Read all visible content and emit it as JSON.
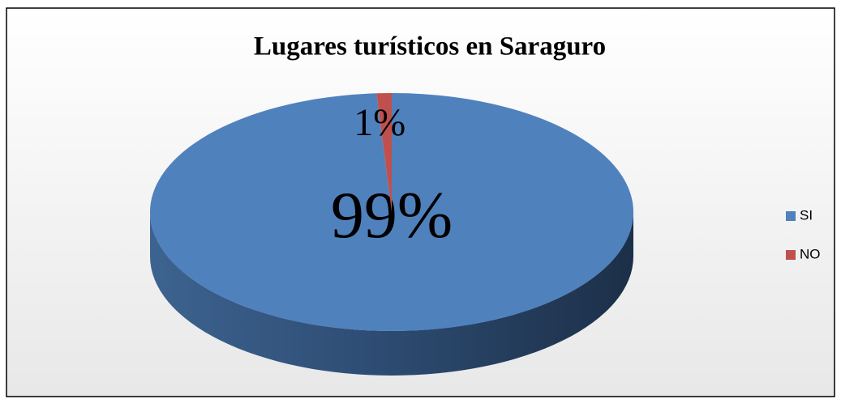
{
  "chart_data": {
    "type": "pie",
    "title": "Lugares turísticos en Saraguro",
    "categories": [
      "SI",
      "NO"
    ],
    "values": [
      99,
      1
    ],
    "value_labels": [
      "99%",
      "1%"
    ],
    "colors": [
      "#4f81bd",
      "#c0504d"
    ],
    "legend": "right"
  }
}
